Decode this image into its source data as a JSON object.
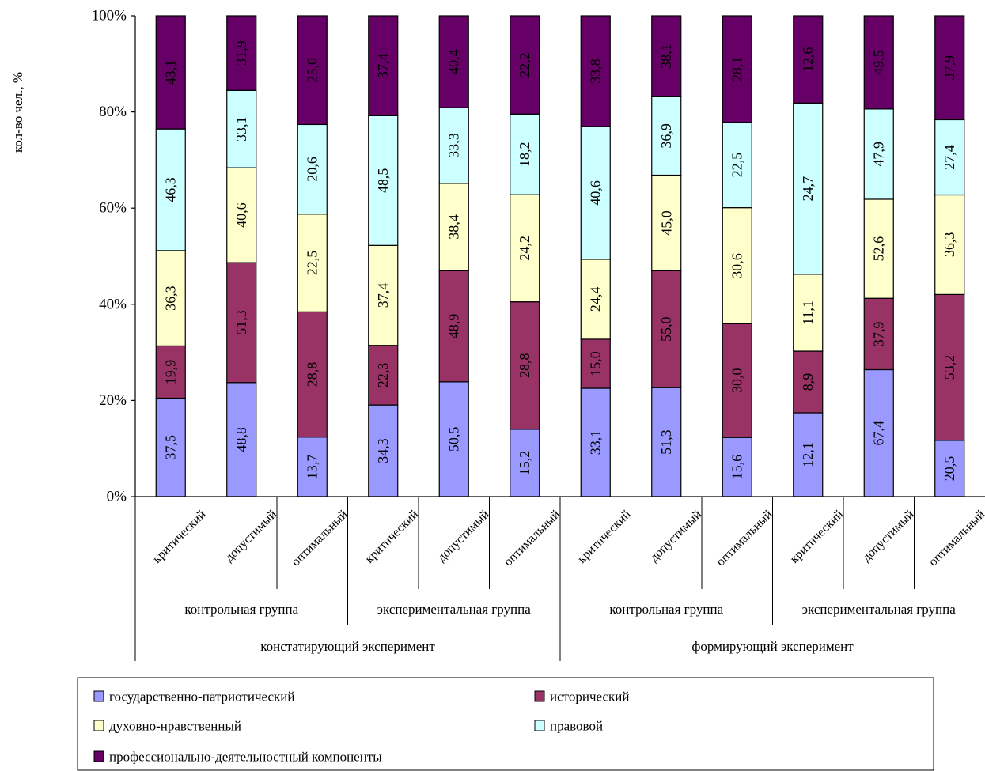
{
  "chart_data": {
    "type": "bar",
    "stacked": "percent",
    "ylabel": "кол-во чел., %",
    "ylim": [
      0,
      100
    ],
    "y_ticks": [
      "0%",
      "20%",
      "40%",
      "60%",
      "80%",
      "100%"
    ],
    "grid": false,
    "legend_position": "bottom",
    "categories": [
      "критический",
      "допустимый",
      "оптимальный",
      "критический",
      "допустимый",
      "оптимальный",
      "критический",
      "допустимый",
      "оптимальный",
      "критический",
      "допустимый",
      "оптимальный"
    ],
    "groups": [
      {
        "label": "контрольная группа",
        "start": 0,
        "count": 3
      },
      {
        "label": "экспериментальная группа",
        "start": 3,
        "count": 3
      },
      {
        "label": "контрольная группа",
        "start": 6,
        "count": 3
      },
      {
        "label": "экспериментальная группа",
        "start": 9,
        "count": 3
      }
    ],
    "supergroups": [
      {
        "label": "констатирующий эксперимент",
        "start": 0,
        "count": 6
      },
      {
        "label": "формирующий эксперимент",
        "start": 6,
        "count": 6
      }
    ],
    "series": [
      {
        "name": "государственно-патриотический",
        "color": "#9999ff",
        "values": [
          "37,5",
          "48,8",
          "13,7",
          "34,3",
          "50,5",
          "15,2",
          "33,1",
          "51,3",
          "15,6",
          "12,1",
          "67,4",
          "20,5"
        ]
      },
      {
        "name": "исторический",
        "color": "#993366",
        "values": [
          "19,9",
          "51,3",
          "28,8",
          "22,3",
          "48,9",
          "28,8",
          "15,0",
          "55,0",
          "30,0",
          "8,9",
          "37,9",
          "53,2"
        ]
      },
      {
        "name": "духовно-нравственный",
        "color": "#ffffcc",
        "values": [
          "36,3",
          "40,6",
          "22,5",
          "37,4",
          "38,4",
          "24,2",
          "24,4",
          "45,0",
          "30,6",
          "11,1",
          "52,6",
          "36,3"
        ]
      },
      {
        "name": "правовой",
        "color": "#ccffff",
        "values": [
          "46,3",
          "33,1",
          "20,6",
          "48,5",
          "33,3",
          "18,2",
          "40,6",
          "36,9",
          "22,5",
          "24,7",
          "47,9",
          "27,4"
        ]
      },
      {
        "name": "профессионально-деятельностный компоненты",
        "color": "#660066",
        "values": [
          "43,1",
          "31,9",
          "25,0",
          "37,4",
          "40,4",
          "22,2",
          "33,8",
          "38,1",
          "28,1",
          "12,6",
          "49,5",
          "37,9"
        ]
      }
    ]
  }
}
